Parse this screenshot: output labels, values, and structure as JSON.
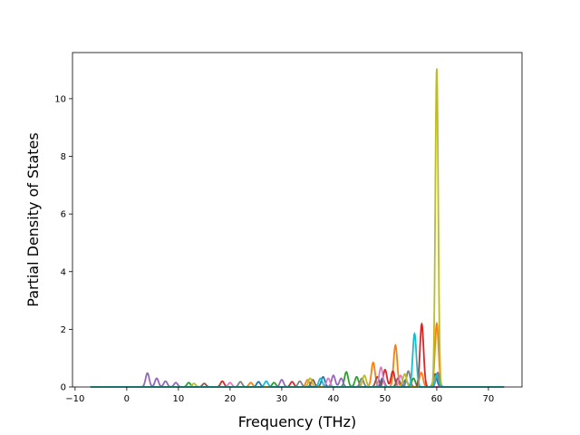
{
  "chart_data": {
    "type": "line",
    "title": "",
    "xlabel": "Frequency (THz)",
    "ylabel": "Partial Density of States",
    "xlim": [
      -10.5,
      76.5
    ],
    "ylim": [
      0,
      11.6
    ],
    "xticks": [
      -10,
      0,
      10,
      20,
      30,
      40,
      50,
      60,
      70
    ],
    "yticks": [
      0,
      2,
      4,
      6,
      8,
      10
    ],
    "xtick_labels": [
      "−10",
      "0",
      "10",
      "20",
      "30",
      "40",
      "50",
      "60",
      "70"
    ],
    "ytick_labels": [
      "0",
      "2",
      "4",
      "6",
      "8",
      "10"
    ],
    "grid": false,
    "legend": "none",
    "x_range_of_data": [
      -7,
      73
    ],
    "series": [
      {
        "color": "#1f77b4",
        "peaks": [
          [
            25.5,
            0.18
          ],
          [
            38.0,
            0.35
          ],
          [
            49.5,
            0.3
          ],
          [
            54.0,
            0.25
          ],
          [
            59.7,
            0.45
          ]
        ]
      },
      {
        "color": "#ff7f0e",
        "peaks": [
          [
            24.0,
            0.15
          ],
          [
            35.0,
            0.25
          ],
          [
            47.7,
            0.85
          ],
          [
            52.0,
            1.45
          ],
          [
            57.0,
            0.5
          ],
          [
            60.0,
            2.2
          ]
        ]
      },
      {
        "color": "#2ca02c",
        "peaks": [
          [
            12.0,
            0.15
          ],
          [
            28.5,
            0.15
          ],
          [
            42.5,
            0.52
          ],
          [
            44.5,
            0.35
          ],
          [
            55.5,
            0.3
          ],
          [
            60.1,
            0.4
          ]
        ]
      },
      {
        "color": "#d62728",
        "peaks": [
          [
            18.5,
            0.2
          ],
          [
            32.0,
            0.18
          ],
          [
            50.0,
            0.6
          ],
          [
            51.5,
            0.55
          ],
          [
            57.1,
            2.18
          ],
          [
            60.0,
            0.3
          ]
        ]
      },
      {
        "color": "#9467bd",
        "peaks": [
          [
            4.0,
            0.48
          ],
          [
            5.8,
            0.3
          ],
          [
            7.5,
            0.2
          ],
          [
            9.5,
            0.15
          ],
          [
            30.0,
            0.25
          ],
          [
            40.0,
            0.4
          ],
          [
            41.5,
            0.3
          ]
        ]
      },
      {
        "color": "#8c564b",
        "peaks": [
          [
            15.0,
            0.12
          ],
          [
            36.0,
            0.25
          ],
          [
            48.5,
            0.35
          ],
          [
            52.5,
            0.3
          ]
        ]
      },
      {
        "color": "#e377c2",
        "peaks": [
          [
            20.0,
            0.15
          ],
          [
            39.0,
            0.3
          ],
          [
            49.2,
            0.68
          ],
          [
            53.0,
            0.4
          ]
        ]
      },
      {
        "color": "#7f7f7f",
        "peaks": [
          [
            22.0,
            0.18
          ],
          [
            33.5,
            0.2
          ],
          [
            45.5,
            0.3
          ],
          [
            54.5,
            0.55
          ],
          [
            60.2,
            0.5
          ]
        ]
      },
      {
        "color": "#bcbd22",
        "peaks": [
          [
            13.0,
            0.12
          ],
          [
            35.5,
            0.3
          ],
          [
            46.0,
            0.4
          ],
          [
            53.8,
            0.45
          ],
          [
            60.0,
            11.05
          ]
        ]
      },
      {
        "color": "#17becf",
        "peaks": [
          [
            27.0,
            0.2
          ],
          [
            37.5,
            0.3
          ],
          [
            55.7,
            1.85
          ],
          [
            60.0,
            0.4
          ]
        ]
      }
    ]
  }
}
